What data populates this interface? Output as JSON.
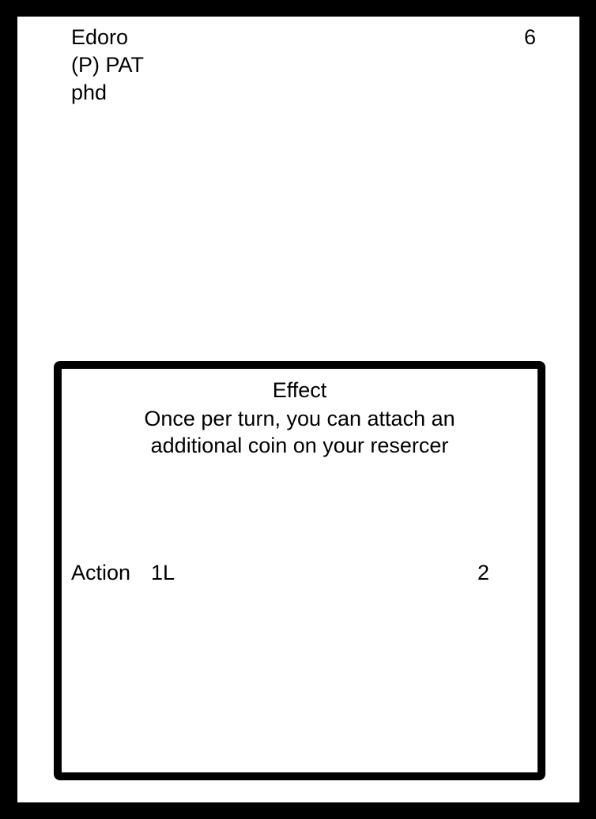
{
  "card": {
    "name": "Edoro",
    "class": "(P) PAT",
    "degree": "phd",
    "cost": "6",
    "effect": {
      "title": "Effect",
      "description_line1": "Once per turn, you can attach an",
      "description_line2": "additional coin on your resercer"
    },
    "action": {
      "label": "Action",
      "cost": "1L",
      "value": "2"
    }
  },
  "colors": {
    "border": "#000000",
    "card_background": "#ffffff",
    "text": "#000000"
  }
}
